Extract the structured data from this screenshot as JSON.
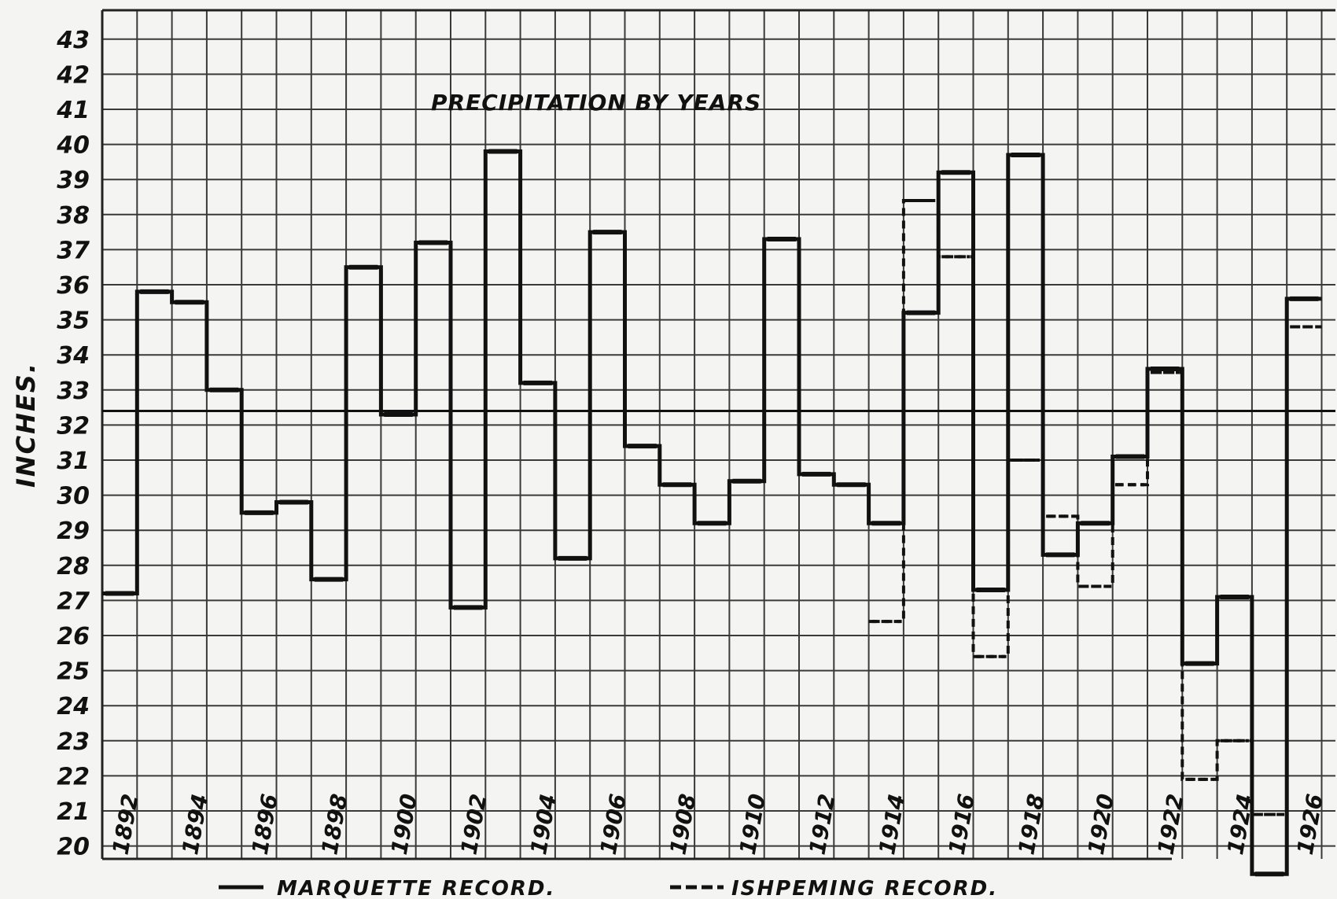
{
  "chart_data": {
    "type": "line",
    "title": "PRECIPITATION BY YEARS",
    "ylabel": "INCHES.",
    "xlabel": "",
    "ylim": [
      20,
      43
    ],
    "yticks": [
      20,
      21,
      22,
      23,
      24,
      25,
      26,
      27,
      28,
      29,
      30,
      31,
      32,
      33,
      34,
      35,
      36,
      37,
      38,
      39,
      40,
      41,
      42,
      43
    ],
    "xtick_labels": [
      "1892",
      "1894",
      "1896",
      "1898",
      "1900",
      "1902",
      "1904",
      "1906",
      "1908",
      "1910",
      "1912",
      "1914",
      "1916",
      "1918",
      "1920",
      "1922",
      "1924",
      "1926"
    ],
    "x": [
      1892,
      1893,
      1894,
      1895,
      1896,
      1897,
      1898,
      1899,
      1900,
      1901,
      1902,
      1903,
      1904,
      1905,
      1906,
      1907,
      1908,
      1909,
      1910,
      1911,
      1912,
      1913,
      1914,
      1915,
      1916,
      1917,
      1918,
      1919,
      1920,
      1921,
      1922,
      1923,
      1924,
      1925,
      1926
    ],
    "series": [
      {
        "name": "MARQUETTE RECORD.",
        "style": "solid",
        "color": "#111111",
        "values": [
          27.2,
          35.8,
          35.5,
          33.0,
          29.5,
          29.8,
          27.6,
          36.5,
          32.3,
          37.2,
          26.8,
          39.8,
          33.2,
          28.2,
          37.5,
          31.4,
          30.3,
          29.2,
          30.4,
          37.3,
          30.6,
          30.3,
          29.2,
          35.2,
          39.2,
          27.3,
          39.7,
          28.3,
          29.2,
          31.1,
          33.6,
          25.2,
          27.1,
          19.2,
          35.6
        ]
      },
      {
        "name": "ISHPEMING RECORD.",
        "style": "dashed",
        "color": "#111111",
        "x": [
          1914,
          1915,
          1916,
          1917,
          1918,
          1919,
          1920,
          1921,
          1922,
          1923,
          1924,
          1925,
          1926
        ],
        "values": [
          26.4,
          38.4,
          36.8,
          25.4,
          31.0,
          29.4,
          27.4,
          30.3,
          33.5,
          21.9,
          23.0,
          20.9,
          34.8
        ]
      }
    ],
    "reference_line": 32.4,
    "grid": true,
    "legend_position": "bottom"
  }
}
